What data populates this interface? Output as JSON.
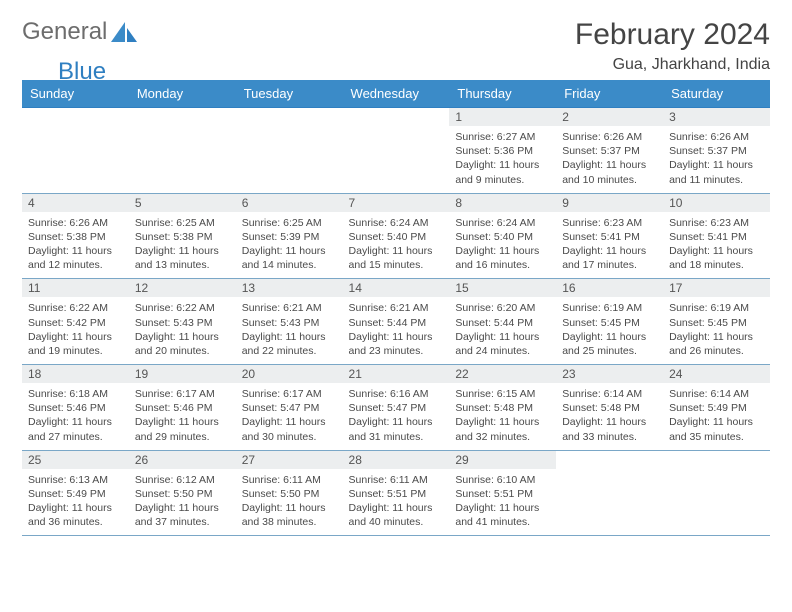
{
  "brand": {
    "part1": "General",
    "part2": "Blue"
  },
  "title": "February 2024",
  "location": "Gua, Jharkhand, India",
  "colors": {
    "header_bg": "#3b8bc8",
    "header_text": "#ffffff",
    "daynum_bg": "#eceeef",
    "border": "#2f7fc1",
    "row_border": "#7aa7c7",
    "text": "#4a4a4a",
    "logo_gray": "#6d6d6d",
    "logo_blue": "#2f7fc1"
  },
  "weekdays": [
    "Sunday",
    "Monday",
    "Tuesday",
    "Wednesday",
    "Thursday",
    "Friday",
    "Saturday"
  ],
  "weeks": [
    [
      null,
      null,
      null,
      null,
      {
        "d": "1",
        "sr": "6:27 AM",
        "ss": "5:36 PM",
        "dl": "11 hours and 9 minutes."
      },
      {
        "d": "2",
        "sr": "6:26 AM",
        "ss": "5:37 PM",
        "dl": "11 hours and 10 minutes."
      },
      {
        "d": "3",
        "sr": "6:26 AM",
        "ss": "5:37 PM",
        "dl": "11 hours and 11 minutes."
      }
    ],
    [
      {
        "d": "4",
        "sr": "6:26 AM",
        "ss": "5:38 PM",
        "dl": "11 hours and 12 minutes."
      },
      {
        "d": "5",
        "sr": "6:25 AM",
        "ss": "5:38 PM",
        "dl": "11 hours and 13 minutes."
      },
      {
        "d": "6",
        "sr": "6:25 AM",
        "ss": "5:39 PM",
        "dl": "11 hours and 14 minutes."
      },
      {
        "d": "7",
        "sr": "6:24 AM",
        "ss": "5:40 PM",
        "dl": "11 hours and 15 minutes."
      },
      {
        "d": "8",
        "sr": "6:24 AM",
        "ss": "5:40 PM",
        "dl": "11 hours and 16 minutes."
      },
      {
        "d": "9",
        "sr": "6:23 AM",
        "ss": "5:41 PM",
        "dl": "11 hours and 17 minutes."
      },
      {
        "d": "10",
        "sr": "6:23 AM",
        "ss": "5:41 PM",
        "dl": "11 hours and 18 minutes."
      }
    ],
    [
      {
        "d": "11",
        "sr": "6:22 AM",
        "ss": "5:42 PM",
        "dl": "11 hours and 19 minutes."
      },
      {
        "d": "12",
        "sr": "6:22 AM",
        "ss": "5:43 PM",
        "dl": "11 hours and 20 minutes."
      },
      {
        "d": "13",
        "sr": "6:21 AM",
        "ss": "5:43 PM",
        "dl": "11 hours and 22 minutes."
      },
      {
        "d": "14",
        "sr": "6:21 AM",
        "ss": "5:44 PM",
        "dl": "11 hours and 23 minutes."
      },
      {
        "d": "15",
        "sr": "6:20 AM",
        "ss": "5:44 PM",
        "dl": "11 hours and 24 minutes."
      },
      {
        "d": "16",
        "sr": "6:19 AM",
        "ss": "5:45 PM",
        "dl": "11 hours and 25 minutes."
      },
      {
        "d": "17",
        "sr": "6:19 AM",
        "ss": "5:45 PM",
        "dl": "11 hours and 26 minutes."
      }
    ],
    [
      {
        "d": "18",
        "sr": "6:18 AM",
        "ss": "5:46 PM",
        "dl": "11 hours and 27 minutes."
      },
      {
        "d": "19",
        "sr": "6:17 AM",
        "ss": "5:46 PM",
        "dl": "11 hours and 29 minutes."
      },
      {
        "d": "20",
        "sr": "6:17 AM",
        "ss": "5:47 PM",
        "dl": "11 hours and 30 minutes."
      },
      {
        "d": "21",
        "sr": "6:16 AM",
        "ss": "5:47 PM",
        "dl": "11 hours and 31 minutes."
      },
      {
        "d": "22",
        "sr": "6:15 AM",
        "ss": "5:48 PM",
        "dl": "11 hours and 32 minutes."
      },
      {
        "d": "23",
        "sr": "6:14 AM",
        "ss": "5:48 PM",
        "dl": "11 hours and 33 minutes."
      },
      {
        "d": "24",
        "sr": "6:14 AM",
        "ss": "5:49 PM",
        "dl": "11 hours and 35 minutes."
      }
    ],
    [
      {
        "d": "25",
        "sr": "6:13 AM",
        "ss": "5:49 PM",
        "dl": "11 hours and 36 minutes."
      },
      {
        "d": "26",
        "sr": "6:12 AM",
        "ss": "5:50 PM",
        "dl": "11 hours and 37 minutes."
      },
      {
        "d": "27",
        "sr": "6:11 AM",
        "ss": "5:50 PM",
        "dl": "11 hours and 38 minutes."
      },
      {
        "d": "28",
        "sr": "6:11 AM",
        "ss": "5:51 PM",
        "dl": "11 hours and 40 minutes."
      },
      {
        "d": "29",
        "sr": "6:10 AM",
        "ss": "5:51 PM",
        "dl": "11 hours and 41 minutes."
      },
      null,
      null
    ]
  ],
  "labels": {
    "sunrise": "Sunrise: ",
    "sunset": "Sunset: ",
    "daylight": "Daylight: "
  }
}
